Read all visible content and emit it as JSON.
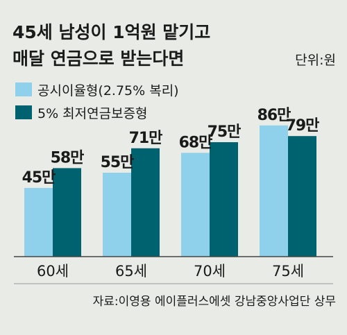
{
  "chart_data": {
    "type": "bar",
    "title_lines": [
      "45세 남성이 1억원 맡기고",
      "매달 연금으로 받는다면"
    ],
    "unit": "단위:원",
    "categories": [
      "60세",
      "65세",
      "70세",
      "75세"
    ],
    "series": [
      {
        "name": "공시이율형(2.75% 복리)",
        "values": [
          45,
          55,
          68,
          86
        ],
        "labels": [
          "45만",
          "55만",
          "68만",
          "86만"
        ],
        "color": "#8fd0ea"
      },
      {
        "name": "5% 최저연금보증형",
        "values": [
          58,
          71,
          75,
          79
        ],
        "labels": [
          "58만",
          "71만",
          "75만",
          "79만"
        ],
        "color": "#00626e"
      }
    ],
    "ylim": [
      0,
      100
    ],
    "grid": false,
    "legend": "top-left",
    "source": "자료:이영용 에이플러스에셋 강남중앙사업단 상무"
  }
}
